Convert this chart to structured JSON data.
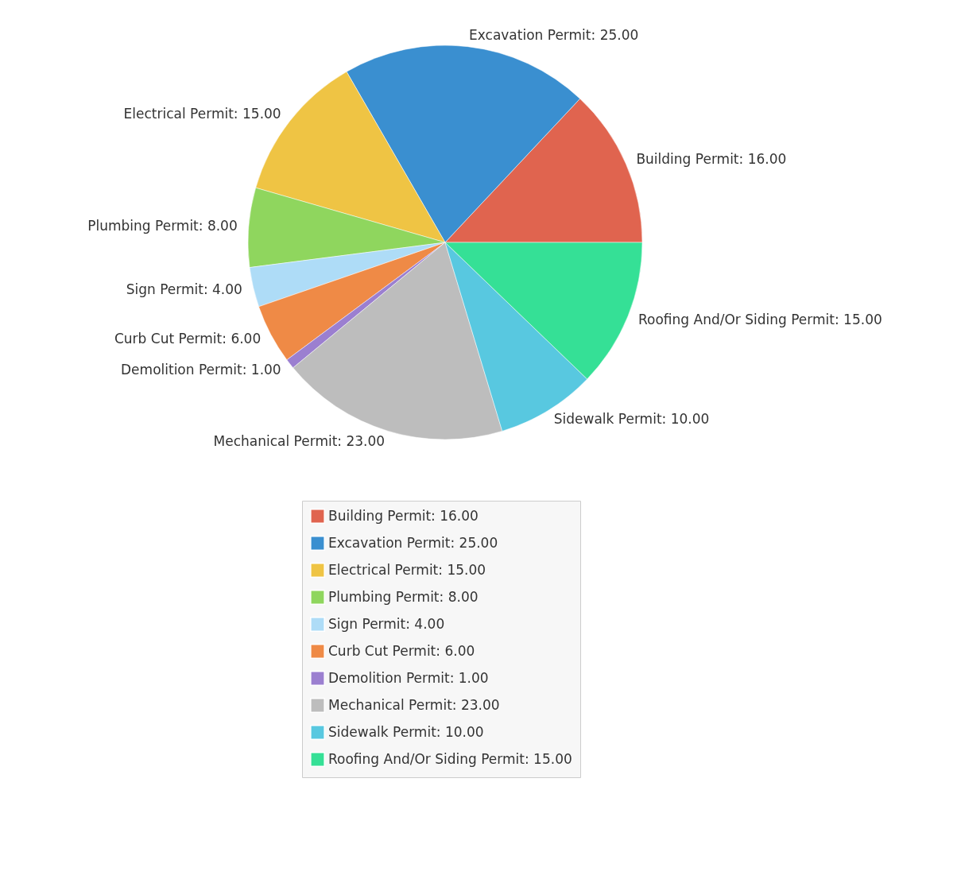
{
  "chart_data": {
    "type": "pie",
    "categories": [
      "Building Permit",
      "Excavation Permit",
      "Electrical Permit",
      "Plumbing Permit",
      "Sign Permit",
      "Curb Cut Permit",
      "Demolition Permit",
      "Mechanical Permit",
      "Sidewalk Permit",
      "Roofing And/Or Siding Permit"
    ],
    "values": [
      16,
      25,
      15,
      8,
      4,
      6,
      1,
      23,
      10,
      15
    ],
    "value_labels": [
      "16.00",
      "25.00",
      "15.00",
      "8.00",
      "4.00",
      "6.00",
      "1.00",
      "23.00",
      "10.00",
      "15.00"
    ],
    "colors": [
      "#e0644f",
      "#3a8fd0",
      "#efc444",
      "#8fd65e",
      "#aedcf7",
      "#ef8a46",
      "#9b7fd0",
      "#bdbdbd",
      "#58c8e0",
      "#35e096"
    ],
    "legend": "bottom"
  }
}
